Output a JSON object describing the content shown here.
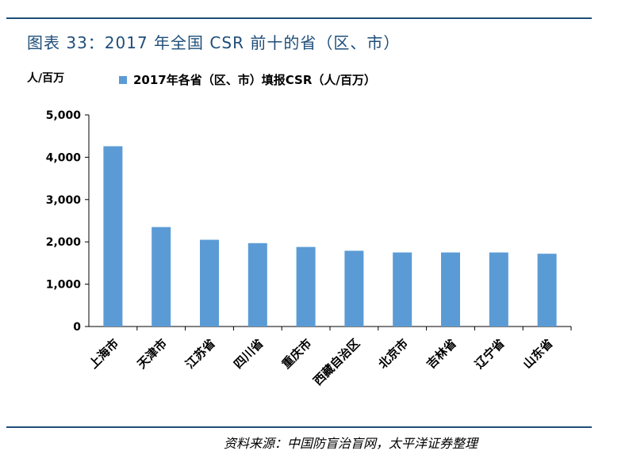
{
  "figure_title": "图表 33：2017 年全国 CSR 前十的省（区、市）",
  "source": "资料来源：中国防盲治盲网，太平洋证券整理",
  "colors": {
    "bar": "#5b9bd5",
    "title": "#1f4e79",
    "rule": "#1f4e79"
  },
  "chart_data": {
    "type": "bar",
    "title": "",
    "ylabel": "人/百万",
    "xlabel": "",
    "categories": [
      "上海市",
      "天津市",
      "江苏省",
      "四川省",
      "重庆市",
      "西藏自治区",
      "北京市",
      "吉林省",
      "辽宁省",
      "山东省"
    ],
    "series": [
      {
        "name": "2017年各省（区、市）填报CSR（人/百万）",
        "values": [
          4260,
          2350,
          2050,
          1970,
          1880,
          1790,
          1750,
          1750,
          1750,
          1720
        ]
      }
    ],
    "ylim": [
      0,
      5000
    ],
    "yticks": [
      0,
      1000,
      2000,
      3000,
      4000,
      5000
    ],
    "ytick_labels": [
      "0",
      "1,000",
      "2,000",
      "3,000",
      "4,000",
      "5,000"
    ],
    "grid": false,
    "legend_position": "top"
  }
}
